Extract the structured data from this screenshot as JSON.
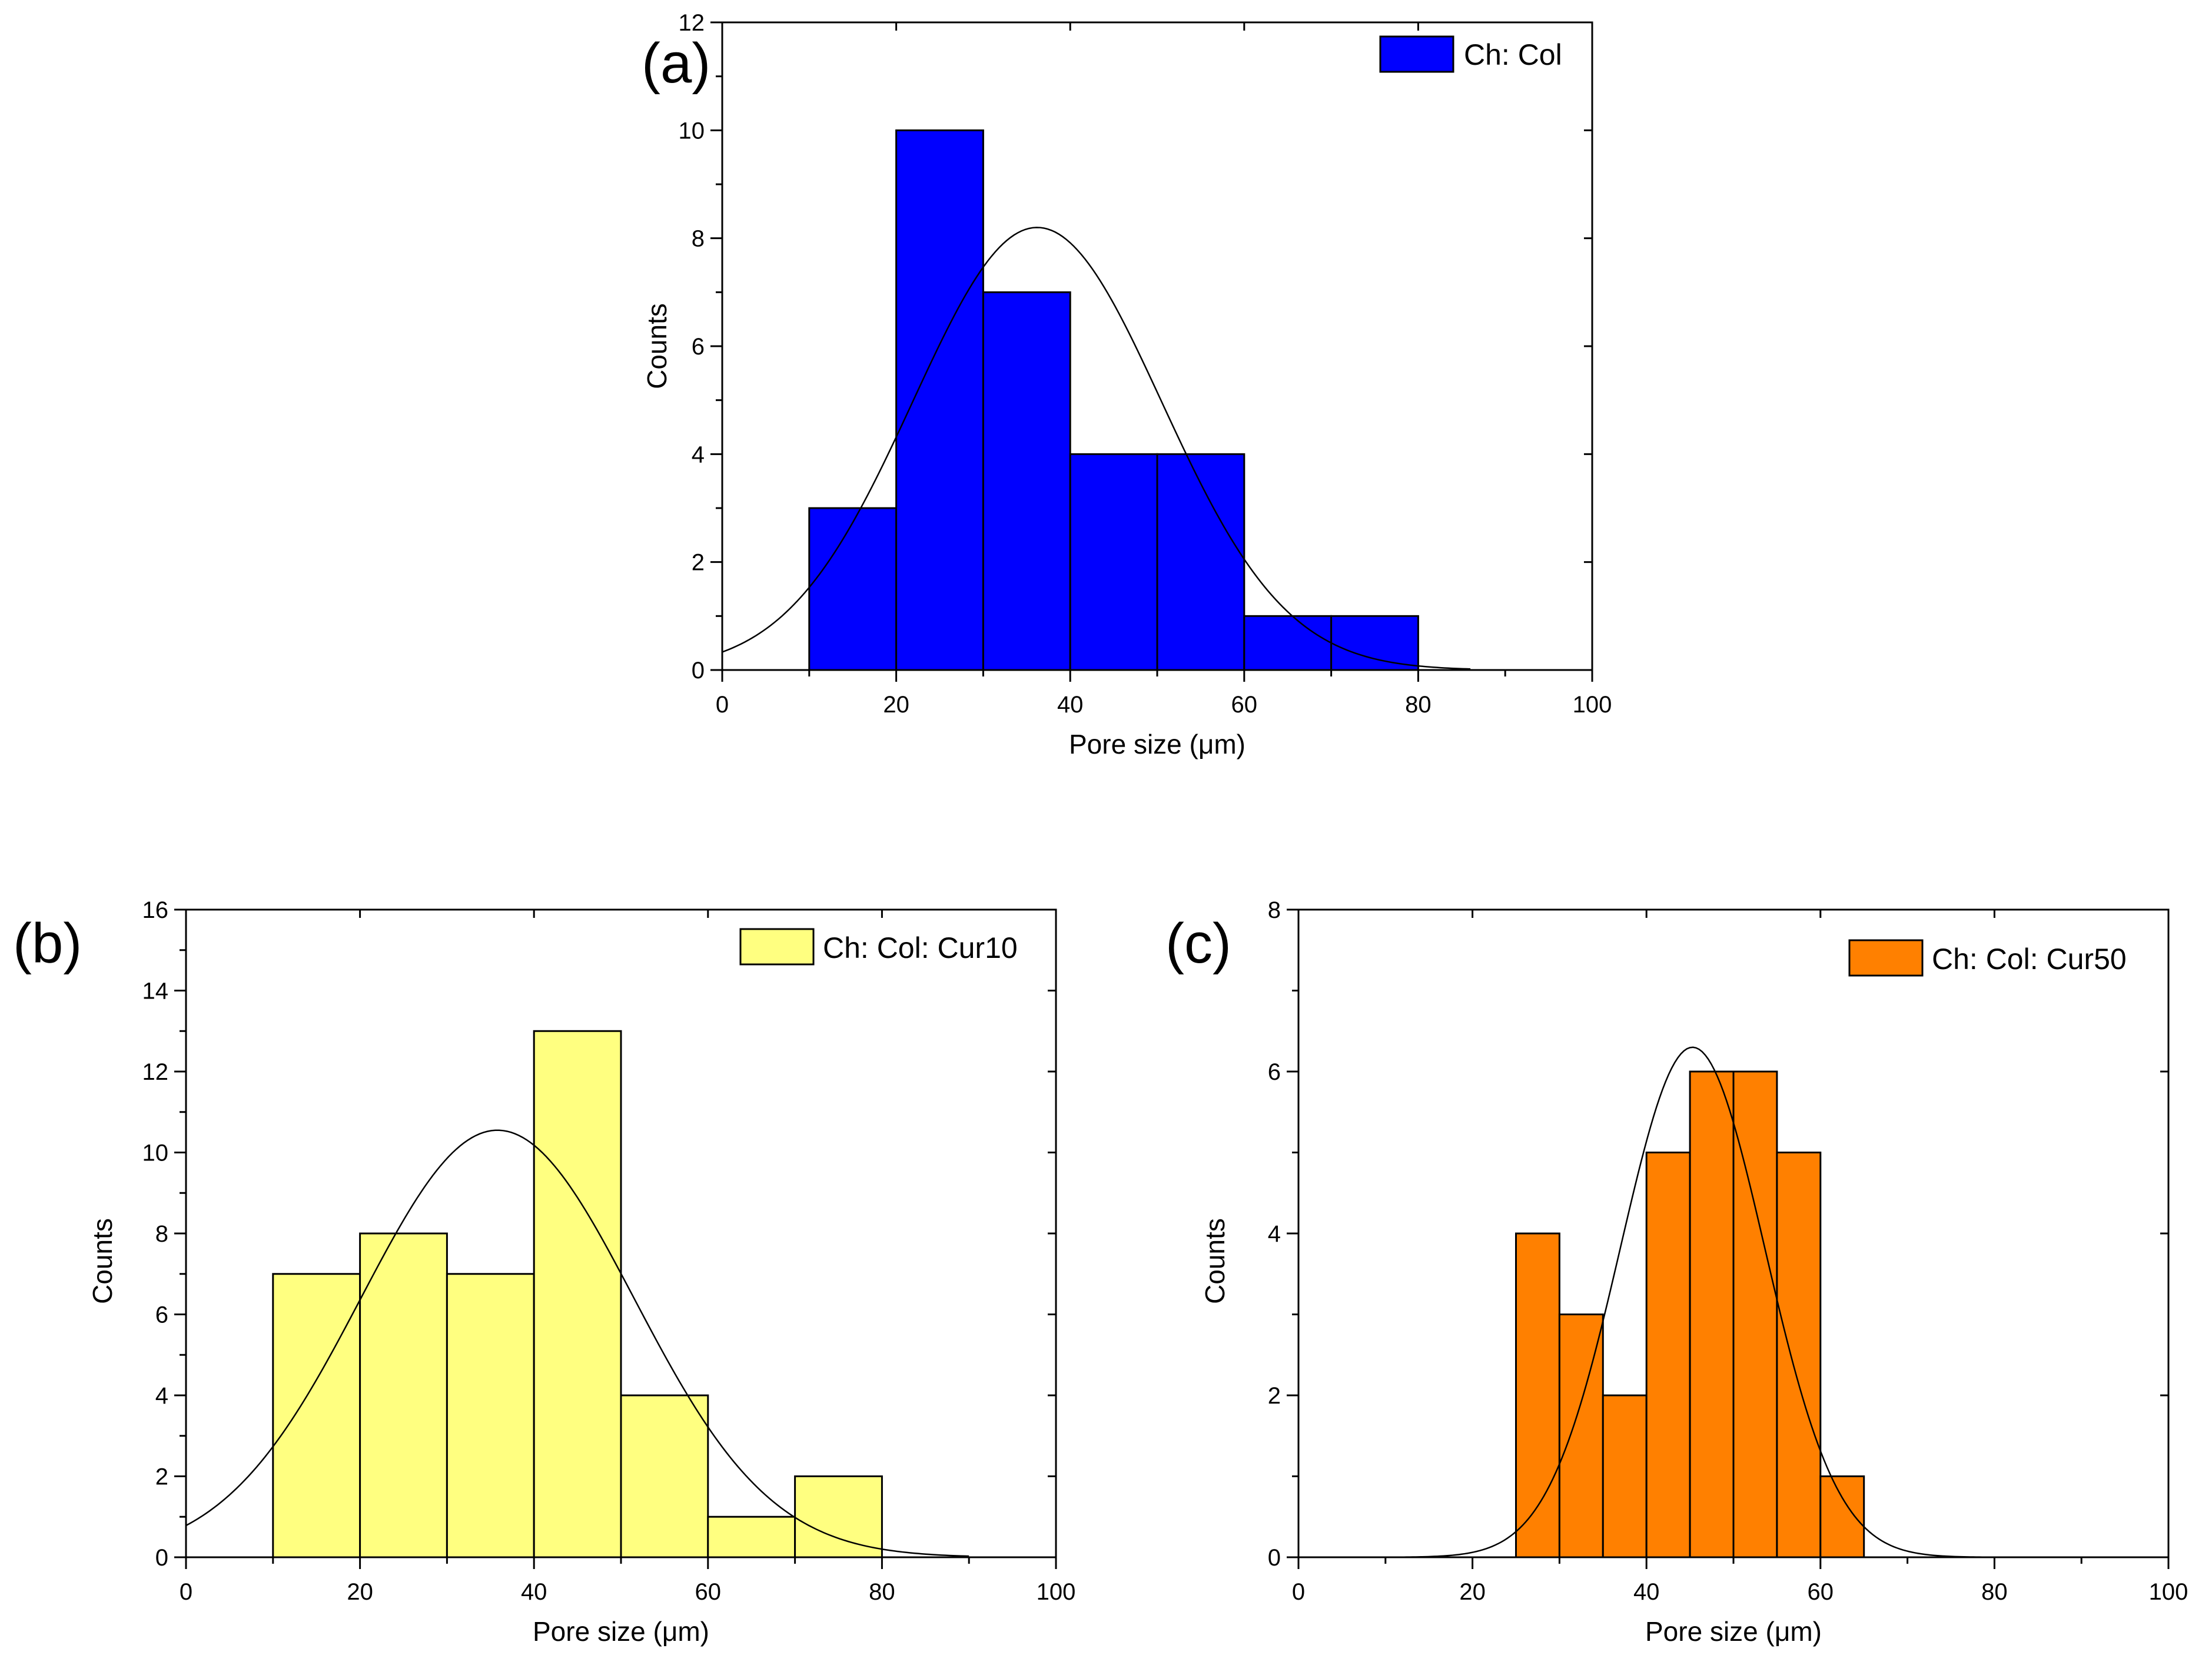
{
  "chart_data": [
    {
      "type": "bar",
      "panel_label": "(a)",
      "title": "",
      "xlabel": "Pore size (μm)",
      "ylabel": "Counts",
      "xlim": [
        0,
        100
      ],
      "ylim": [
        0,
        12
      ],
      "x_ticks": [
        0,
        20,
        40,
        60,
        80,
        100
      ],
      "y_ticks": [
        0,
        2,
        4,
        6,
        8,
        10,
        12
      ],
      "bin_edges": [
        10,
        20,
        30,
        40,
        50,
        60,
        70,
        80
      ],
      "values": [
        3,
        10,
        7,
        4,
        4,
        1,
        1
      ],
      "legend": "Ch: Col",
      "legend_position": "top-right",
      "color": "#0000FF",
      "fit": {
        "type": "gaussian",
        "mean": 36.2,
        "sd": 14.3,
        "peak": 8.2,
        "x_range": [
          0,
          86
        ]
      }
    },
    {
      "type": "bar",
      "panel_label": "(b)",
      "title": "",
      "xlabel": "Pore size (μm)",
      "ylabel": "Counts",
      "xlim": [
        0,
        100
      ],
      "ylim": [
        0,
        16
      ],
      "x_ticks": [
        0,
        20,
        40,
        60,
        80,
        100
      ],
      "y_ticks": [
        0,
        2,
        4,
        6,
        8,
        10,
        12,
        14,
        16
      ],
      "bin_edges": [
        10,
        20,
        30,
        40,
        50,
        60,
        70,
        80
      ],
      "values": [
        7,
        8,
        7,
        13,
        4,
        1,
        2
      ],
      "legend": "Ch: Col: Cur10",
      "legend_position": "top-right",
      "color": "#FFFF80",
      "fit": {
        "type": "gaussian",
        "mean": 35.8,
        "sd": 15.7,
        "peak": 10.55,
        "x_range": [
          0,
          90
        ]
      }
    },
    {
      "type": "bar",
      "panel_label": "(c)",
      "title": "",
      "xlabel": "Pore size (μm)",
      "ylabel": "Counts",
      "xlim": [
        0,
        100
      ],
      "ylim": [
        0,
        8
      ],
      "x_ticks": [
        0,
        20,
        40,
        60,
        80,
        100
      ],
      "y_ticks": [
        0,
        2,
        4,
        6,
        8
      ],
      "bin_edges": [
        25,
        30,
        35,
        40,
        45,
        50,
        55,
        60,
        65
      ],
      "values": [
        4,
        3,
        2,
        5,
        6,
        6,
        5,
        1
      ],
      "legend": "Ch: Col: Cur50",
      "legend_position": "top-right",
      "color": "#FF8000",
      "fit": {
        "type": "gaussian",
        "mean": 45.3,
        "sd": 8.3,
        "peak": 6.3,
        "x_range": [
          10,
          80
        ]
      }
    }
  ]
}
